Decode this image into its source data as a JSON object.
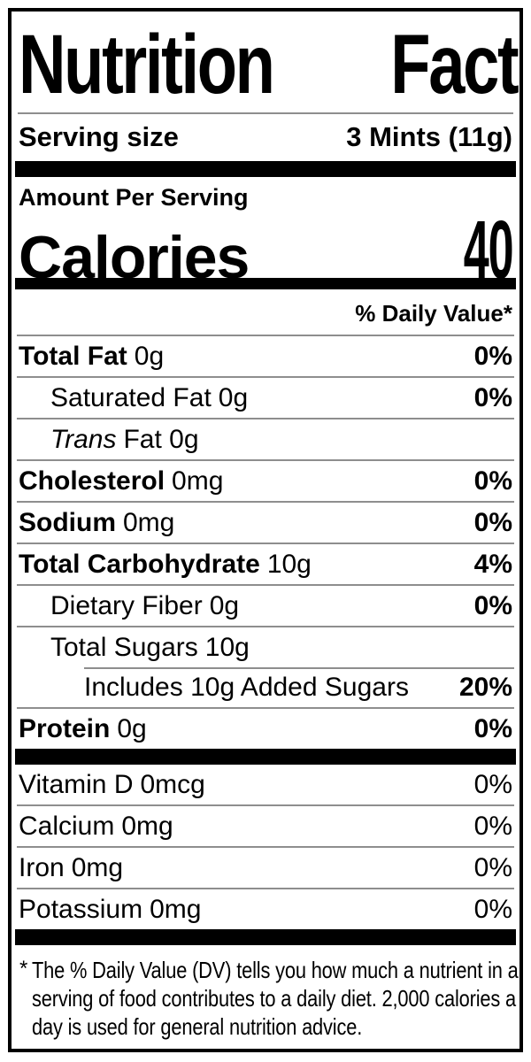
{
  "title": {
    "word1": "Nutrition",
    "word2": "Facts"
  },
  "serving": {
    "label": "Serving size",
    "value": "3 Mints (11g)"
  },
  "calories": {
    "section_label": "Amount Per Serving",
    "label": "Calories",
    "value": "40"
  },
  "daily_value_header": "% Daily Value*",
  "nutrients": [
    {
      "name": "Total Fat",
      "amount": "0g",
      "dv": "0%"
    },
    {
      "name": "Saturated Fat",
      "amount": "0g",
      "dv": "0%"
    },
    {
      "name": "Trans",
      "amount": "Fat 0g",
      "dv": ""
    },
    {
      "name": "Cholesterol",
      "amount": "0mg",
      "dv": "0%"
    },
    {
      "name": "Sodium",
      "amount": "0mg",
      "dv": "0%"
    },
    {
      "name": "Total Carbohydrate",
      "amount": "10g",
      "dv": "4%"
    },
    {
      "name": "Dietary Fiber",
      "amount": "0g",
      "dv": "0%"
    },
    {
      "name": "Total Sugars",
      "amount": "10g",
      "dv": ""
    },
    {
      "name": "Includes 10g Added Sugars",
      "amount": "",
      "dv": "20%"
    },
    {
      "name": "Protein",
      "amount": "0g",
      "dv": "0%"
    }
  ],
  "vitamins": [
    {
      "name": "Vitamin D",
      "amount": "0mcg",
      "dv": "0%"
    },
    {
      "name": "Calcium",
      "amount": "0mg",
      "dv": "0%"
    },
    {
      "name": "Iron",
      "amount": "0mg",
      "dv": "0%"
    },
    {
      "name": "Potassium",
      "amount": "0mg",
      "dv": "0%"
    }
  ],
  "footnote": {
    "marker": "*",
    "lines": [
      "The % Daily Value (DV) tells you how much a nutrient in a",
      "serving of food contributes to a daily diet. 2,000 calories a",
      "day is used for general nutrition advice."
    ]
  },
  "colors": {
    "text": "#000000",
    "bar": "#000000",
    "divider": "#8e8e8e",
    "background": "#ffffff"
  }
}
